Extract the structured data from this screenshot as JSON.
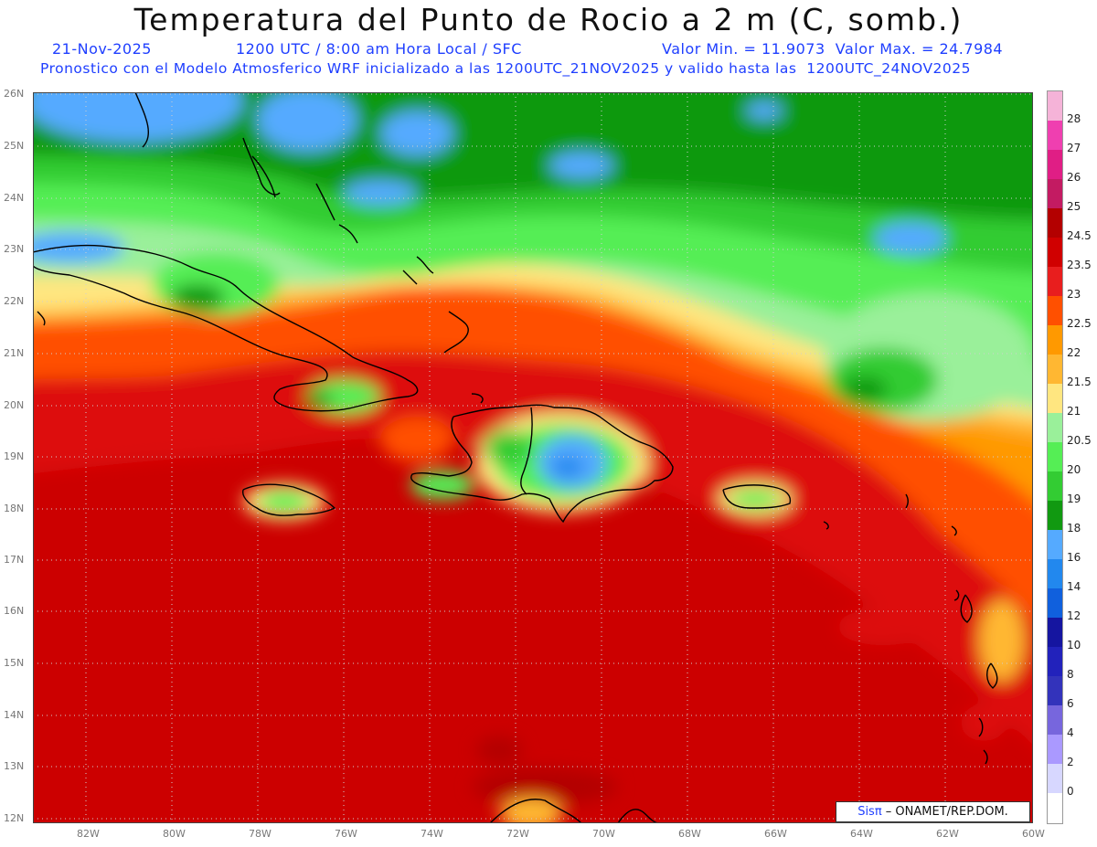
{
  "header": {
    "title": "Temperatura del Punto de Rocio a 2 m (C, somb.)",
    "date": "21-Nov-2025",
    "time_info": "1200 UTC / 8:00 am Hora Local / SFC",
    "minmax": "Valor Min. = 11.9073  Valor Max. = 24.7984",
    "forecast_info": "Pronostico con el Modelo Atmosferico WRF inicializado a las 1200UTC_21NOV2025 y valido hasta las  1200UTC_24NOV2025"
  },
  "map": {
    "lat_labels": [
      "26N",
      "25N",
      "24N",
      "23N",
      "22N",
      "21N",
      "20N",
      "19N",
      "18N",
      "17N",
      "16N",
      "15N",
      "14N",
      "13N",
      "12N"
    ],
    "lon_labels": [
      "82W",
      "80W",
      "78W",
      "76W",
      "74W",
      "72W",
      "70W",
      "68W",
      "66W",
      "64W",
      "62W",
      "60W"
    ],
    "lat_range": [
      12,
      26
    ],
    "lon_range": [
      -83.25,
      -60
    ],
    "grid": "dotted"
  },
  "colorbar": {
    "levels": [
      "28",
      "27",
      "26",
      "25",
      "24.5",
      "23.5",
      "23",
      "22.5",
      "22",
      "21.5",
      "21",
      "20.5",
      "20",
      "19",
      "18",
      "16",
      "14",
      "12",
      "10",
      "8",
      "6",
      "4",
      "2",
      "0"
    ],
    "colors": [
      "#f5b3d8",
      "#ef3fb0",
      "#e01e85",
      "#c31b62",
      "#b30000",
      "#d00000",
      "#e81e1e",
      "#ff5000",
      "#ff9900",
      "#ffb732",
      "#ffe680",
      "#9af09a",
      "#55ee55",
      "#33cc33",
      "#119911",
      "#55aaff",
      "#2288ee",
      "#1060dd",
      "#1515a0",
      "#2222bb",
      "#3333bb",
      "#7766dd",
      "#aa99ff",
      "#d7d7ff",
      "#ffffff"
    ]
  },
  "credit": {
    "sis": "Sisπ",
    "org": " – ONAMET/REP.DOM."
  }
}
